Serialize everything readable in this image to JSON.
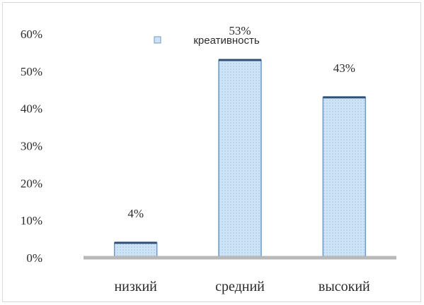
{
  "chart_data": {
    "type": "bar",
    "categories": [
      "низкий",
      "средний",
      "высокий"
    ],
    "values": [
      4,
      53,
      43
    ],
    "data_labels": [
      "4%",
      "53%",
      "43%"
    ],
    "legend_label": "креативность",
    "legend_position": "top-center",
    "ylim": [
      0,
      60
    ],
    "y_ticks": [
      "0%",
      "10%",
      "20%",
      "30%",
      "40%",
      "50%",
      "60%"
    ],
    "y_tick_values": [
      0,
      10,
      20,
      30,
      40,
      50,
      60
    ],
    "grid": false,
    "colors": {
      "bar_fill": "#cfe3f7",
      "bar_stroke": "#6f98c4",
      "bar_top": "#2f4f74",
      "baseline": "#b8b8b8"
    }
  }
}
